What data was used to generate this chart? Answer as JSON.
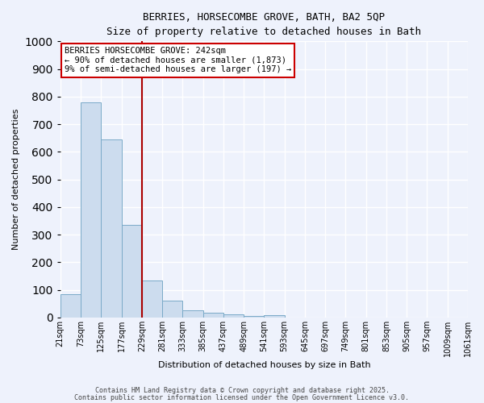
{
  "title_line1": "BERRIES, HORSECOMBE GROVE, BATH, BA2 5QP",
  "title_line2": "Size of property relative to detached houses in Bath",
  "xlabel": "Distribution of detached houses by size in Bath",
  "ylabel": "Number of detached properties",
  "bar_values": [
    83,
    780,
    645,
    335,
    135,
    62,
    26,
    18,
    10,
    5,
    8,
    0,
    0,
    0,
    0,
    0,
    0,
    0,
    0,
    0
  ],
  "bin_labels": [
    "21sqm",
    "73sqm",
    "125sqm",
    "177sqm",
    "229sqm",
    "281sqm",
    "333sqm",
    "385sqm",
    "437sqm",
    "489sqm",
    "541sqm",
    "593sqm",
    "645sqm",
    "697sqm",
    "749sqm",
    "801sqm",
    "853sqm",
    "905sqm",
    "957sqm",
    "1009sqm",
    "1061sqm"
  ],
  "bar_color": "#ccdcee",
  "bar_edge_color": "#7aaac8",
  "vline_color": "#aa0000",
  "vline_pos": 4,
  "annotation_text": "BERRIES HORSECOMBE GROVE: 242sqm\n← 90% of detached houses are smaller (1,873)\n9% of semi-detached houses are larger (197) →",
  "annotation_box_color": "#ffffff",
  "annotation_box_edge": "#cc0000",
  "ylim": [
    0,
    1000
  ],
  "yticks": [
    0,
    100,
    200,
    300,
    400,
    500,
    600,
    700,
    800,
    900,
    1000
  ],
  "background_color": "#eef2fc",
  "grid_color": "#ffffff",
  "footer_line1": "Contains HM Land Registry data © Crown copyright and database right 2025.",
  "footer_line2": "Contains public sector information licensed under the Open Government Licence v3.0."
}
